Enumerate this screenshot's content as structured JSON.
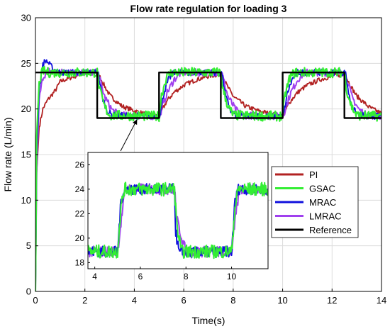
{
  "chart_data": {
    "type": "line",
    "title": "Flow rate regulation for loading 3",
    "xlabel": "Time(s)",
    "ylabel": "Flow rate (L/min)",
    "xlim": [
      0,
      14
    ],
    "ylim": [
      0,
      30
    ],
    "xticks": [
      0,
      2,
      4,
      6,
      8,
      10,
      12,
      14
    ],
    "yticks": [
      0,
      5,
      10,
      15,
      20,
      25,
      30
    ],
    "grid": true,
    "legend_location": "inside, lower-right (in inset area)",
    "series": [
      {
        "name": "PI",
        "color": "#b22222",
        "x": [
          0,
          0.05,
          0.15,
          0.3,
          0.5,
          0.8,
          1.0,
          1.5,
          2.0,
          2.5,
          2.55,
          2.8,
          3.0,
          3.5,
          4.0,
          4.5,
          5.0,
          5.05,
          5.3,
          5.6,
          6.0,
          6.5,
          7.0,
          7.5,
          7.55,
          7.8,
          8.0,
          8.5,
          9.0,
          9.5,
          10.0,
          10.05,
          10.3,
          10.6,
          11.0,
          11.5,
          12.0,
          12.5,
          12.55,
          12.8,
          13.0,
          13.5,
          14.0
        ],
        "values": [
          0,
          13,
          18,
          20,
          21,
          22,
          23,
          23.5,
          24,
          24,
          23.8,
          22.5,
          21.5,
          20.3,
          19.8,
          19.4,
          19.2,
          19.5,
          20.8,
          21.8,
          22.6,
          23.2,
          23.6,
          23.8,
          23.6,
          22.3,
          21.4,
          20.3,
          19.8,
          19.5,
          19.2,
          19.5,
          20.8,
          21.8,
          22.6,
          23.2,
          23.6,
          23.8,
          23.6,
          22.3,
          21.4,
          20.2,
          19.5
        ]
      },
      {
        "name": "GSAC",
        "color": "#33ee33",
        "x": [
          0,
          0.05,
          0.15,
          0.3,
          0.5,
          2.5,
          2.6,
          2.8,
          3.0,
          5.0,
          5.1,
          5.3,
          5.5,
          7.5,
          7.6,
          7.8,
          8.0,
          10.0,
          10.1,
          10.3,
          10.5,
          12.5,
          12.6,
          12.8,
          13.0,
          14.0
        ],
        "values": [
          0,
          17,
          23,
          24.2,
          24,
          24,
          22,
          20.2,
          19.3,
          19.2,
          21.5,
          23.5,
          24,
          24,
          22,
          20.2,
          19.3,
          19.2,
          21.5,
          23.5,
          24,
          24,
          22,
          20.2,
          19.3,
          19.2
        ]
      },
      {
        "name": "MRAC",
        "color": "#1010dd",
        "x": [
          0,
          0.05,
          0.15,
          0.3,
          0.45,
          0.7,
          1.0,
          2.5,
          2.55,
          2.7,
          2.9,
          3.1,
          5.0,
          5.05,
          5.2,
          5.4,
          5.6,
          7.5,
          7.55,
          7.7,
          7.9,
          8.1,
          10.0,
          10.05,
          10.2,
          10.4,
          10.6,
          12.5,
          12.55,
          12.7,
          12.9,
          13.1,
          14.0
        ],
        "values": [
          0,
          15,
          22,
          25,
          25.3,
          24.4,
          24,
          24,
          23.8,
          21.3,
          19.8,
          19.3,
          19.2,
          19.6,
          21.8,
          23.3,
          24,
          24,
          23.8,
          21.3,
          19.8,
          19.3,
          19.2,
          19.6,
          21.8,
          23.3,
          24,
          24,
          23.8,
          21.3,
          19.8,
          19.3,
          19.2
        ]
      },
      {
        "name": "LMRAC",
        "color": "#a040ee",
        "x": [
          0,
          0.05,
          0.15,
          0.3,
          0.5,
          0.8,
          2.5,
          2.55,
          2.8,
          3.1,
          3.4,
          5.0,
          5.05,
          5.3,
          5.6,
          5.9,
          7.5,
          7.55,
          7.8,
          8.1,
          8.4,
          10.0,
          10.05,
          10.3,
          10.6,
          10.9,
          12.5,
          12.55,
          12.8,
          13.1,
          13.4,
          14.0
        ],
        "values": [
          0,
          13,
          21,
          23.5,
          24.2,
          24,
          24,
          23.8,
          21.3,
          19.9,
          19.3,
          19.2,
          19.5,
          21.6,
          23.2,
          24,
          24,
          23.8,
          21.3,
          19.9,
          19.3,
          19.2,
          19.5,
          21.6,
          23.2,
          24,
          24,
          23.8,
          21.3,
          19.9,
          19.3,
          19.2
        ]
      },
      {
        "name": "Reference",
        "color": "#000000",
        "x": [
          0,
          2.5,
          2.5,
          5.0,
          5.0,
          7.5,
          7.5,
          10.0,
          10.0,
          12.5,
          12.5,
          14.0
        ],
        "values": [
          24,
          24,
          19,
          19,
          24,
          24,
          19,
          19,
          24,
          24,
          19,
          19
        ]
      }
    ],
    "inset": {
      "xlim": [
        3.7,
        11.6
      ],
      "ylim": [
        17.5,
        27
      ],
      "xticks": [
        4,
        6,
        8,
        10
      ],
      "yticks": [
        18,
        20,
        22,
        24,
        26
      ],
      "series": [
        {
          "name": "GSAC",
          "color": "#33ee33",
          "x": [
            3.7,
            5.0,
            5.15,
            5.3,
            7.5,
            7.6,
            7.8,
            10.0,
            10.15,
            10.3,
            11.6
          ],
          "values": [
            18.9,
            18.9,
            22.5,
            24,
            24,
            21,
            18.9,
            18.9,
            22.5,
            24,
            24
          ]
        },
        {
          "name": "MRAC",
          "color": "#1010dd",
          "x": [
            3.7,
            5.0,
            5.15,
            5.3,
            7.5,
            7.55,
            7.7,
            10.0,
            10.15,
            10.3,
            11.6
          ],
          "values": [
            18.9,
            18.9,
            23,
            24,
            24,
            20.5,
            18.8,
            18.9,
            23,
            24,
            24
          ]
        },
        {
          "name": "LMRAC",
          "color": "#a040ee",
          "x": [
            3.7,
            5.0,
            5.2,
            5.35,
            7.5,
            7.6,
            7.9,
            8.0,
            10.0,
            10.2,
            10.35,
            11.6
          ],
          "values": [
            18.9,
            18.9,
            22,
            24,
            24,
            21.5,
            19.5,
            18.9,
            18.9,
            22,
            24,
            24
          ]
        }
      ]
    },
    "annotation": "arrow from inset to main plot near t=4, flow 19"
  }
}
